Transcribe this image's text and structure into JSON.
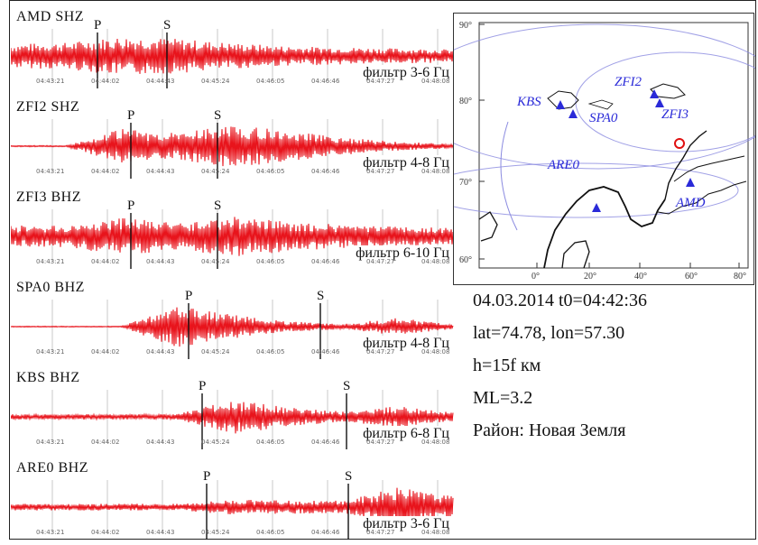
{
  "tick_times": [
    "04:43:21",
    "04:44:02",
    "04:44:43",
    "04:45:24",
    "04:46:05",
    "04:46:46",
    "04:47:27",
    "04:48:08"
  ],
  "trace_color": "#e8141c",
  "panels": [
    {
      "station": "AMD",
      "component": "SHZ",
      "filter": "фильтр 3-6 Гц",
      "p_label": "P",
      "s_label": "S",
      "amp": [
        0.55,
        0.62,
        0.9,
        0.8,
        0.6,
        0.45,
        0.4,
        0.35,
        0.3
      ]
    },
    {
      "station": "ZFI2",
      "component": "SHZ",
      "filter": "фильтр 4-8 Гц",
      "p_label": "P",
      "s_label": "S",
      "amp": [
        0.03,
        0.03,
        0.8,
        0.6,
        1.0,
        0.7,
        0.4,
        0.2,
        0.1
      ]
    },
    {
      "station": "ZFI3",
      "component": "BHZ",
      "filter": "фильтр 6-10 Гц",
      "p_label": "P",
      "s_label": "S",
      "amp": [
        0.5,
        0.5,
        0.9,
        0.6,
        0.95,
        0.7,
        0.55,
        0.45,
        0.4
      ]
    },
    {
      "station": "SPA0",
      "component": "BHZ",
      "filter": "фильтр 4-8 Гц",
      "p_label": "P",
      "s_label": "S",
      "amp": [
        0.02,
        0.02,
        0.02,
        1.0,
        0.55,
        0.25,
        0.12,
        0.4,
        0.1
      ]
    },
    {
      "station": "KBS",
      "component": "BHZ",
      "filter": "фильтр 6-8 Гц",
      "p_label": "P",
      "s_label": "S",
      "amp": [
        0.12,
        0.12,
        0.12,
        0.12,
        0.8,
        0.45,
        0.25,
        0.5,
        0.2
      ]
    },
    {
      "station": "ARE0",
      "component": "BHZ",
      "filter": "фильтр 3-6 Гц",
      "p_label": "P",
      "s_label": "S",
      "amp": [
        0.15,
        0.15,
        0.15,
        0.15,
        0.35,
        0.3,
        0.3,
        0.9,
        0.5
      ]
    }
  ],
  "map": {
    "y_ticks": [
      "90°",
      "80°",
      "70°",
      "60°"
    ],
    "x_ticks": [
      "0°",
      "20°",
      "40°",
      "60°",
      "80°"
    ],
    "stations": [
      {
        "label": "KBS"
      },
      {
        "label": "SPA0"
      },
      {
        "label": "ZFI2"
      },
      {
        "label": "ZFI3"
      },
      {
        "label": "ARE0"
      },
      {
        "label": "AMD"
      }
    ],
    "station_color": "#2a2ad8",
    "epicenter_color": "#e01010"
  },
  "info": {
    "line1": "04.03.2014 t0=04:42:36",
    "line2": "lat=74.78, lon=57.30",
    "line3": "h=15f км",
    "line4": "ML=3.2",
    "line5": "Район: Новая Земля"
  }
}
